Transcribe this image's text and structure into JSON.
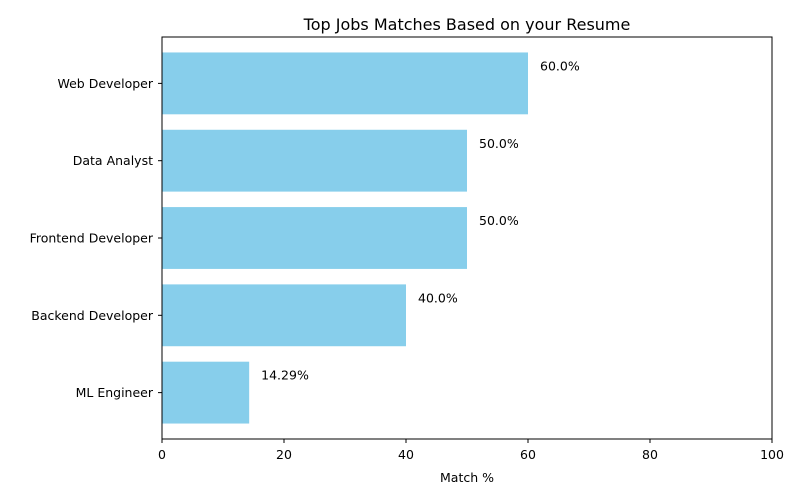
{
  "chart_data": {
    "type": "bar",
    "orientation": "horizontal",
    "title": "Top Jobs Matches Based on your Resume",
    "xlabel": "Match %",
    "ylabel": "",
    "xlim": [
      0,
      100
    ],
    "xticks": [
      0,
      20,
      40,
      60,
      80,
      100
    ],
    "categories": [
      "Web Developer",
      "Data Analyst",
      "Frontend Developer",
      "Backend Developer",
      "ML Engineer"
    ],
    "values": [
      60,
      50,
      50,
      40,
      14.29
    ],
    "value_labels": [
      "60.0%",
      "50.0%",
      "50.0%",
      "40.0%",
      "14.29%"
    ],
    "bar_color": "#87ceeb",
    "grid": false,
    "legend": "none"
  }
}
